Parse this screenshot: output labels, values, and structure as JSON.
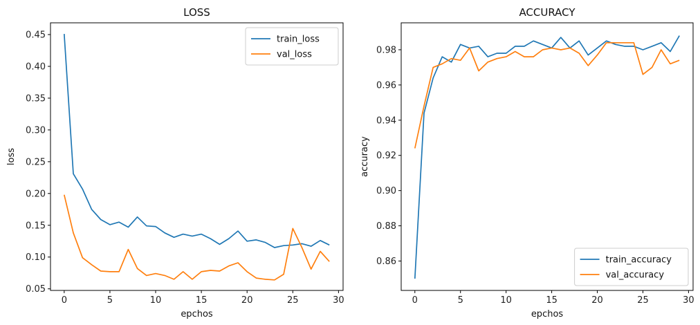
{
  "chart_data": [
    {
      "type": "line",
      "title": "LOSS",
      "xlabel": "epchos",
      "ylabel": "loss",
      "xlim": [
        -1.5,
        30.5
      ],
      "ylim": [
        0.0475,
        0.4685
      ],
      "xticks": [
        0,
        5,
        10,
        15,
        20,
        25,
        30
      ],
      "yticks": [
        0.05,
        0.1,
        0.15,
        0.2,
        0.25,
        0.3,
        0.35,
        0.4,
        0.45
      ],
      "ytick_labels": [
        "0.05",
        "0.10",
        "0.15",
        "0.20",
        "0.25",
        "0.30",
        "0.35",
        "0.40",
        "0.45"
      ],
      "legend_position": "top-right",
      "grid": false,
      "x": [
        0,
        1,
        2,
        3,
        4,
        5,
        6,
        7,
        8,
        9,
        10,
        11,
        12,
        13,
        14,
        15,
        16,
        17,
        18,
        19,
        20,
        21,
        22,
        23,
        24,
        25,
        26,
        27,
        28,
        29
      ],
      "series": [
        {
          "name": "train_loss",
          "color": "#1f77b4",
          "values": [
            0.451,
            0.231,
            0.207,
            0.175,
            0.159,
            0.151,
            0.155,
            0.147,
            0.163,
            0.149,
            0.148,
            0.138,
            0.131,
            0.136,
            0.133,
            0.136,
            0.129,
            0.12,
            0.129,
            0.141,
            0.125,
            0.127,
            0.123,
            0.115,
            0.118,
            0.119,
            0.121,
            0.117,
            0.126,
            0.119
          ]
        },
        {
          "name": "val_loss",
          "color": "#ff7f0e",
          "values": [
            0.198,
            0.138,
            0.099,
            0.088,
            0.078,
            0.077,
            0.077,
            0.112,
            0.082,
            0.071,
            0.074,
            0.071,
            0.065,
            0.077,
            0.065,
            0.077,
            0.079,
            0.078,
            0.086,
            0.091,
            0.077,
            0.067,
            0.065,
            0.064,
            0.073,
            0.145,
            0.115,
            0.081,
            0.109,
            0.093
          ]
        }
      ]
    },
    {
      "type": "line",
      "title": "ACCURACY",
      "xlabel": "epchos",
      "ylabel": "accuracy",
      "xlim": [
        -1.5,
        30.5
      ],
      "ylim": [
        0.8433,
        0.9953
      ],
      "xticks": [
        0,
        5,
        10,
        15,
        20,
        25,
        30
      ],
      "yticks": [
        0.86,
        0.88,
        0.9,
        0.92,
        0.94,
        0.96,
        0.98
      ],
      "ytick_labels": [
        "0.86",
        "0.88",
        "0.90",
        "0.92",
        "0.94",
        "0.96",
        "0.98"
      ],
      "legend_position": "bottom-right",
      "grid": false,
      "x": [
        0,
        1,
        2,
        3,
        4,
        5,
        6,
        7,
        8,
        9,
        10,
        11,
        12,
        13,
        14,
        15,
        16,
        17,
        18,
        19,
        20,
        21,
        22,
        23,
        24,
        25,
        26,
        27,
        28,
        29
      ],
      "series": [
        {
          "name": "train_accuracy",
          "color": "#1f77b4",
          "values": [
            0.85,
            0.944,
            0.964,
            0.976,
            0.973,
            0.983,
            0.981,
            0.982,
            0.976,
            0.978,
            0.978,
            0.982,
            0.982,
            0.985,
            0.983,
            0.981,
            0.987,
            0.981,
            0.985,
            0.977,
            0.981,
            0.985,
            0.983,
            0.982,
            0.982,
            0.98,
            0.982,
            0.984,
            0.979,
            0.988
          ]
        },
        {
          "name": "val_accuracy",
          "color": "#ff7f0e",
          "values": [
            0.924,
            0.948,
            0.97,
            0.972,
            0.975,
            0.974,
            0.981,
            0.968,
            0.973,
            0.975,
            0.976,
            0.979,
            0.976,
            0.976,
            0.98,
            0.981,
            0.98,
            0.981,
            0.978,
            0.971,
            0.977,
            0.984,
            0.984,
            0.984,
            0.984,
            0.966,
            0.97,
            0.98,
            0.972,
            0.974
          ]
        }
      ]
    }
  ]
}
